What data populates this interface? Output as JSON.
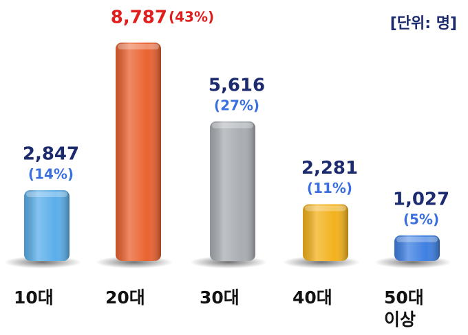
{
  "chart_data": {
    "type": "bar",
    "unit_label": "[단위: 명]",
    "categories": [
      "10대",
      "20대",
      "30대",
      "40대",
      "50대 이상"
    ],
    "values": [
      2847,
      8787,
      5616,
      2281,
      1027
    ],
    "value_labels": [
      "2,847",
      "8,787",
      "5,616",
      "2,281",
      "1,027"
    ],
    "percents": [
      14,
      43,
      27,
      11,
      5
    ],
    "percent_labels": [
      "(14%)",
      "(43%)",
      "(27%)",
      "(11%)",
      "(5%)"
    ],
    "colors": [
      "#5aaeea",
      "#ea6230",
      "#a9aeb4",
      "#f3b21c",
      "#3e7fe2"
    ],
    "value_label_colors": [
      "#1c2a6e",
      "#e01e1e",
      "#1c2a6e",
      "#1c2a6e",
      "#1c2a6e"
    ],
    "percent_label_colors": [
      "#3a6fe0",
      "#e01e1e",
      "#3a6fe0",
      "#3a6fe0",
      "#3a6fe0"
    ]
  }
}
